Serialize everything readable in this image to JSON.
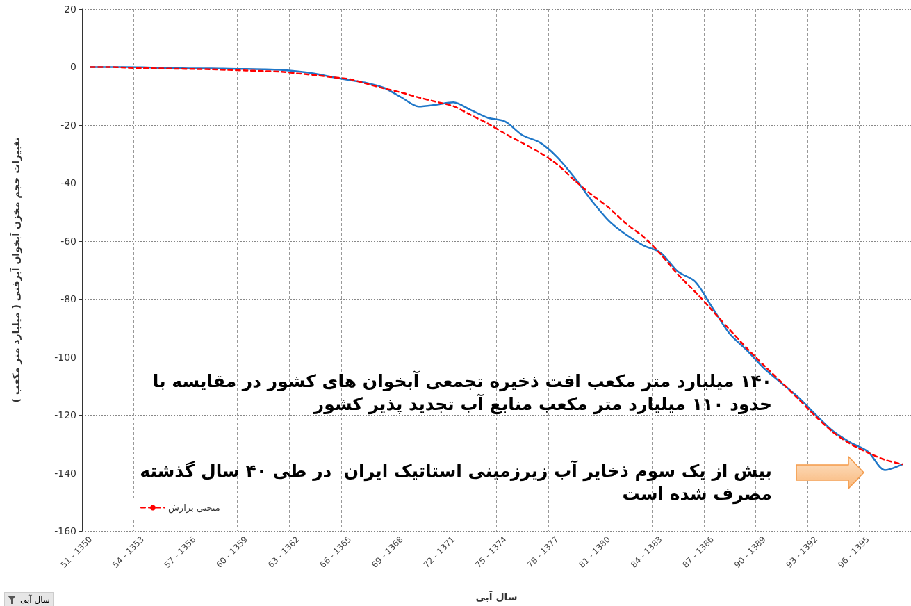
{
  "chart_data": {
    "type": "line",
    "xlabel": "سال آبی",
    "ylabel": "تغییرات حجم مخزن آبخوان آبرفتی ( میلیارد متر مکعب )",
    "categories": [
      "51 - 1350",
      null,
      null,
      "54 - 1353",
      null,
      null,
      "57 - 1356",
      null,
      null,
      "60 - 1359",
      null,
      null,
      "63 - 1362",
      null,
      null,
      "66 - 1365",
      null,
      null,
      "69 - 1368",
      null,
      null,
      "72 - 1371",
      null,
      null,
      "75 - 1374",
      null,
      null,
      "78 - 1377",
      null,
      null,
      "81 - 1380",
      null,
      null,
      "84 - 1383",
      null,
      null,
      "87 - 1386",
      null,
      null,
      "90 - 1389",
      null,
      null,
      "93 - 1392",
      null,
      null,
      "96 - 1395",
      null,
      null
    ],
    "series": [
      {
        "color": "#1f77c8",
        "line_style": "solid",
        "values": [
          0,
          0,
          0,
          -0.1,
          -0.3,
          -0.4,
          -0.5,
          -0.5,
          -0.6,
          -0.7,
          -0.8,
          -1.0,
          -1.5,
          -2.3,
          -3.5,
          -4.5,
          -5.5,
          -7.2,
          -10.5,
          -13.6,
          -13,
          -12.2,
          -14.8,
          -17.5,
          -18.8,
          -23.5,
          -26,
          -31,
          -38,
          -46,
          -53,
          -57.8,
          -61.5,
          -64,
          -70.5,
          -74,
          -83,
          -92,
          -97.7,
          -104,
          -109,
          -114,
          -120,
          -125.6,
          -129.5,
          -132.6,
          -139,
          -137
        ]
      },
      {
        "name": "منحنی برازش",
        "color": "#ff0000",
        "line_style": "dashed",
        "values": [
          0,
          0,
          -0.2,
          -0.4,
          -0.5,
          -0.6,
          -0.7,
          -0.8,
          -1.0,
          -1.2,
          -1.4,
          -1.6,
          -2.2,
          -2.8,
          -3.5,
          -4.2,
          -5.8,
          -7.4,
          -8.8,
          -10.5,
          -12,
          -13.5,
          -16.5,
          -19.5,
          -23,
          -26.2,
          -29.5,
          -33.5,
          -39,
          -44,
          -48.5,
          -54,
          -58.5,
          -64.5,
          -71.5,
          -77.5,
          -84,
          -90.6,
          -97,
          -103,
          -108.7,
          -114.6,
          -120.6,
          -126,
          -130,
          -133,
          -135.5,
          -137
        ]
      }
    ],
    "ylim": [
      -160,
      20
    ],
    "yticks": [
      -160,
      -140,
      -120,
      -100,
      -80,
      -60,
      -40,
      -20,
      0,
      20
    ],
    "grid": true,
    "legend": "bottom left",
    "marker": "none",
    "annotations": [
      "۱۴۰ میلیارد متر مکعب افت ذخیره تجمعی آبخوان های کشور در مقایسه با\nحدود ۱۱۰ میلیارد متر مکعب منابع آب تجدید پذیر کشور",
      "بیش از یک سوم ذخایر آب زیرزمینی استاتیک ایران  در طی ۴۰ سال گذشته\nمصرف شده است",
      "سال آبی"
    ]
  }
}
